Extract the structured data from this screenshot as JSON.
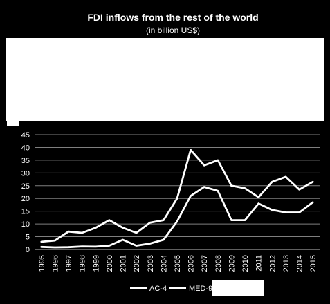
{
  "chart_data": {
    "type": "line",
    "title": "FDI inflows from the rest of the world",
    "subtitle": "(in billion US$)",
    "x": [
      "1995",
      "1996",
      "1997",
      "1998",
      "1999",
      "2000",
      "2001",
      "2002",
      "2003",
      "2004",
      "2005",
      "2006",
      "2007",
      "2008",
      "2009",
      "2010",
      "2011",
      "2012",
      "2013",
      "2014",
      "2015"
    ],
    "ylim": [
      0,
      45
    ],
    "yticks": [
      0,
      5,
      10,
      15,
      20,
      25,
      30,
      35,
      40,
      45
    ],
    "grid": true,
    "legend_position": "bottom",
    "series": [
      {
        "name": "AC-4",
        "color": "#ffffff",
        "values": [
          1.0,
          0.8,
          0.9,
          1.2,
          1.1,
          1.5,
          3.8,
          1.5,
          2.3,
          3.8,
          11.0,
          21.0,
          24.5,
          23.0,
          11.5,
          11.5,
          18.0,
          15.5,
          14.5,
          14.5,
          18.5
        ]
      },
      {
        "name": "MED-9",
        "color": "#ffffff",
        "values": [
          3.0,
          3.5,
          7.0,
          6.5,
          8.5,
          11.5,
          8.5,
          6.5,
          10.5,
          11.5,
          20.0,
          39.0,
          33.0,
          35.0,
          25.0,
          24.0,
          20.5,
          26.5,
          28.5,
          23.5,
          26.5
        ]
      }
    ]
  }
}
